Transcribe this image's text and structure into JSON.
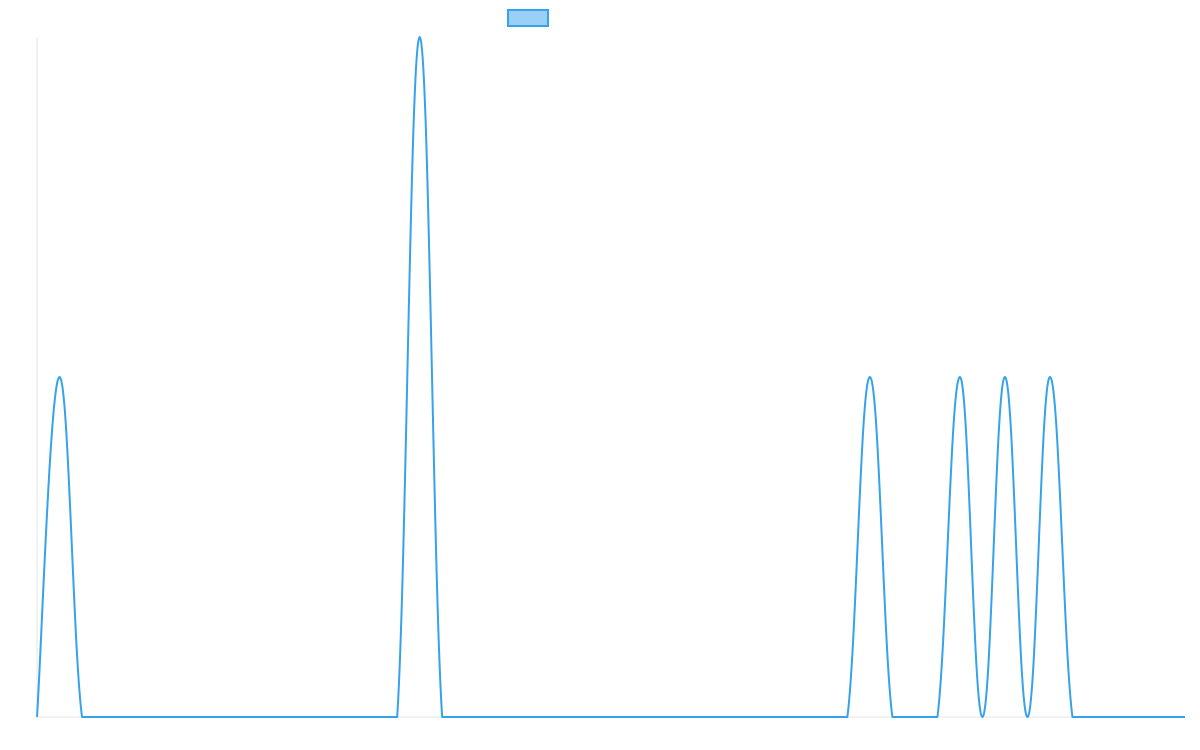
{
  "chart_data": {
    "type": "line",
    "title": "",
    "xlabel": "",
    "ylabel": "",
    "legend": {
      "placement": "top-center",
      "entries": [
        {
          "label": ""
        }
      ]
    },
    "grid": false,
    "xlim": [
      0,
      51
    ],
    "ylim": [
      0,
      2
    ],
    "series": [
      {
        "name": "",
        "color": "#36a2eb",
        "fill": "#9ad0f5",
        "x": [
          0,
          1,
          2,
          3,
          4,
          5,
          6,
          7,
          8,
          9,
          10,
          11,
          12,
          13,
          14,
          15,
          16,
          17,
          18,
          19,
          20,
          21,
          22,
          23,
          24,
          25,
          26,
          27,
          28,
          29,
          30,
          31,
          32,
          33,
          34,
          35,
          36,
          37,
          38,
          39,
          40,
          41,
          42,
          43,
          44,
          45,
          46,
          47,
          48,
          49,
          50,
          51
        ],
        "values": [
          0,
          1,
          0,
          0,
          0,
          0,
          0,
          0,
          0,
          0,
          0,
          0,
          0,
          0,
          0,
          0,
          0,
          2,
          0,
          0,
          0,
          0,
          0,
          0,
          0,
          0,
          0,
          0,
          0,
          0,
          0,
          0,
          0,
          0,
          0,
          0,
          0,
          1,
          0,
          0,
          0,
          1,
          0,
          1,
          0,
          1,
          0,
          0,
          0,
          0,
          0,
          0
        ]
      }
    ]
  }
}
